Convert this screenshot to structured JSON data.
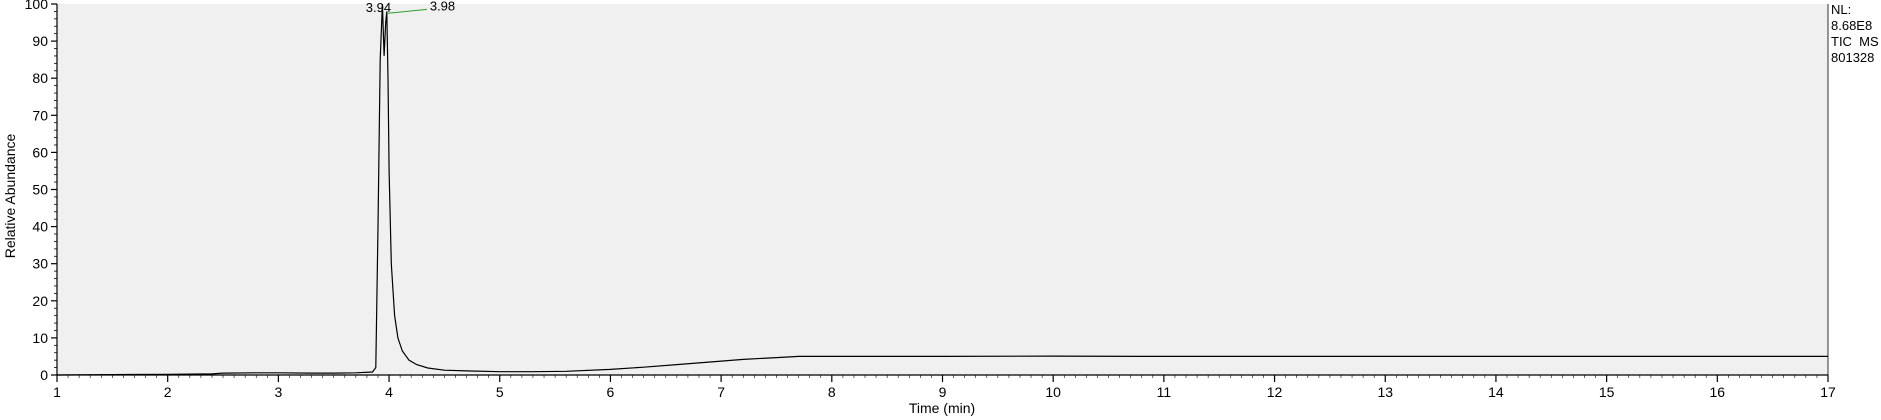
{
  "chart_data": {
    "type": "line",
    "title": "",
    "xlabel": "Time (min)",
    "ylabel": "Relative Abundance",
    "xlim": [
      1,
      17
    ],
    "ylim": [
      0,
      100
    ],
    "x_ticks": [
      "1",
      "2",
      "3",
      "4",
      "5",
      "6",
      "7",
      "8",
      "9",
      "10",
      "11",
      "12",
      "13",
      "14",
      "15",
      "16",
      "17"
    ],
    "y_ticks": [
      "0",
      "10",
      "20",
      "30",
      "40",
      "50",
      "60",
      "70",
      "80",
      "90",
      "100"
    ],
    "grid": false,
    "legend": "none",
    "colors": {
      "trace": "#000000",
      "plot_bg": "#f0f0f0",
      "peak_link": "#2e9e2e"
    },
    "annotations": {
      "nl_label": "NL:",
      "nl_value": "8.68E8",
      "trace_label": "TIC  MS",
      "file_label": "801328"
    },
    "peak_labels": [
      {
        "text": "3.94",
        "x": 3.94,
        "y": 100
      },
      {
        "text": "3.98",
        "x": 3.98,
        "y": 98
      }
    ],
    "series": [
      {
        "x": [
          1.0,
          1.5,
          2.0,
          2.4,
          2.5,
          2.8,
          3.0,
          3.3,
          3.5,
          3.7,
          3.85,
          3.88,
          3.9,
          3.92,
          3.94,
          3.955,
          3.97,
          3.98,
          3.99,
          4.0,
          4.02,
          4.05,
          4.08,
          4.12,
          4.18,
          4.25,
          4.35,
          4.5,
          4.7,
          5.0,
          5.3,
          5.6,
          6.0,
          6.3,
          6.6,
          6.9,
          7.2,
          7.5,
          7.7,
          8.0,
          9.0,
          10.0,
          11.0,
          12.0,
          13.0,
          14.0,
          15.0,
          16.0,
          17.0
        ],
        "values": [
          0.0,
          0.1,
          0.2,
          0.3,
          0.5,
          0.6,
          0.6,
          0.5,
          0.5,
          0.6,
          0.8,
          2.0,
          40.0,
          85.0,
          100.0,
          86.0,
          95.0,
          98.0,
          80.0,
          55.0,
          30.0,
          16.0,
          10.0,
          6.5,
          4.0,
          2.8,
          1.9,
          1.3,
          1.1,
          0.9,
          0.9,
          1.0,
          1.5,
          2.1,
          2.8,
          3.5,
          4.2,
          4.7,
          5.0,
          5.0,
          5.0,
          5.1,
          5.0,
          5.0,
          5.0,
          5.0,
          5.0,
          5.0,
          5.0
        ]
      }
    ]
  }
}
